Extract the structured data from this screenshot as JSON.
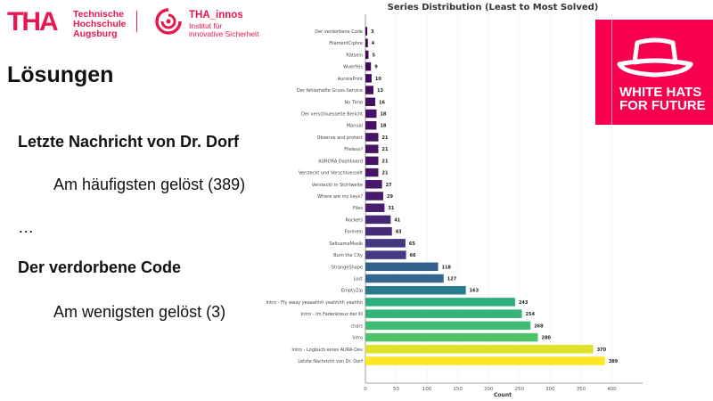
{
  "header": {
    "tha_logo": "THA",
    "tha_name": [
      "Technische",
      "Hochschule",
      "Augsburg"
    ],
    "innos_name": "THA_innos",
    "innos_sub": [
      "Institut für",
      "innovative Sicherheit"
    ]
  },
  "slide": {
    "title": "Lösungen",
    "most_name": "Letzte Nachricht von Dr. Dorf",
    "most_text": "Am häufigsten gelöst (389)",
    "ellipsis": "…",
    "least_name": "Der verdorbene Code",
    "least_text": "Am wenigsten gelöst (3)"
  },
  "badge": {
    "line1": "WHITE HATS",
    "line2": "FOR FUTURE",
    "color": "#f7004f",
    "icon": "hat-icon"
  },
  "chart_data": {
    "type": "bar",
    "orientation": "horizontal",
    "title": "Series Distribution (Least to Most Solved)",
    "xlabel": "Count",
    "ylabel": "",
    "xlim": [
      0,
      450
    ],
    "xticks": [
      0,
      50,
      100,
      150,
      200,
      250,
      300,
      350,
      400
    ],
    "grid": true,
    "colormap": "viridis",
    "categories": [
      "Der verdorbene Code",
      "FilamentCiphre",
      "Rätsein",
      "Wuerfels",
      "AuroraPrint",
      "Der fehlerhafte Gruss-Service",
      "No Time",
      "Der verschluesselte Bericht",
      "Manual",
      "Observe and protect",
      "Fileless?",
      "AURORA Dashboard",
      "Versteckt und Verschluesselt",
      "Versteckt in Sichtweite",
      "Where are my keys?",
      "Files",
      "Rockets",
      "Formeln",
      "SeltsameMusik",
      "Burn the City",
      "StrangeShape",
      "Lost",
      "EmptyZip",
      "Intro - Fly away yeaaahhh yeahhhh yeahhh",
      "Intro - Im Fadenkreuz der KI",
      "chars",
      "Intro",
      "Intro - Logbuch eines AURA-Dev",
      "Letzte Nachricht von Dr. Dorf"
    ],
    "values": [
      3,
      4,
      5,
      9,
      10,
      13,
      16,
      18,
      18,
      21,
      21,
      21,
      21,
      27,
      29,
      31,
      41,
      43,
      65,
      66,
      118,
      127,
      163,
      243,
      254,
      268,
      280,
      370,
      389
    ]
  }
}
